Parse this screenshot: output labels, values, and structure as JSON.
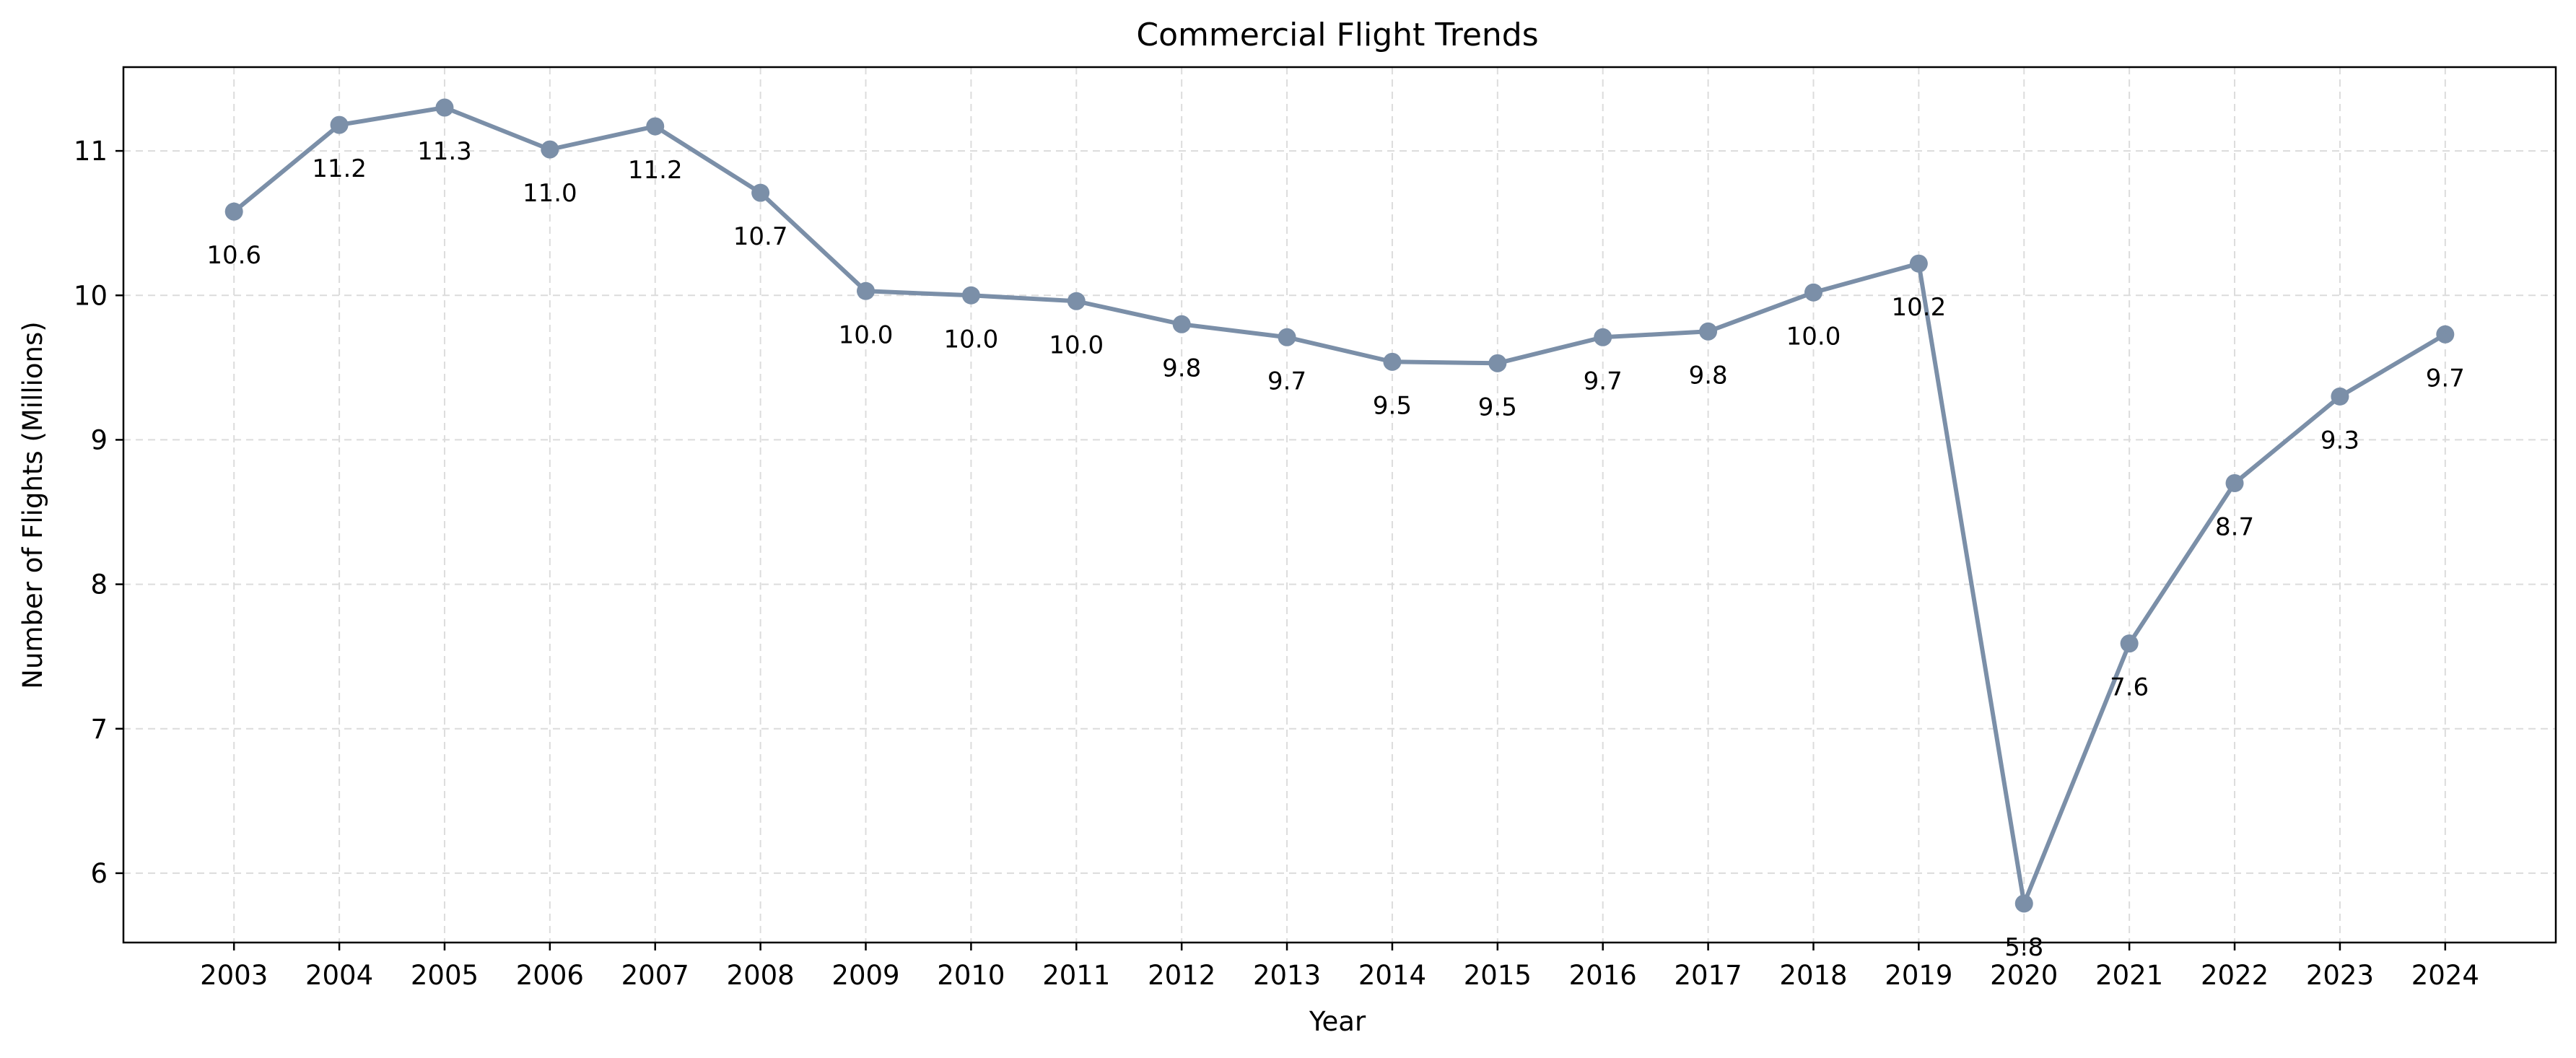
{
  "chart_data": {
    "type": "line",
    "title": "Commercial Flight Trends",
    "xlabel": "Year",
    "ylabel": "Number of Flights (Millions)",
    "x": [
      2003,
      2004,
      2005,
      2006,
      2007,
      2008,
      2009,
      2010,
      2011,
      2012,
      2013,
      2014,
      2015,
      2016,
      2017,
      2018,
      2019,
      2020,
      2021,
      2022,
      2023,
      2024
    ],
    "values": [
      10.58,
      11.18,
      11.3,
      11.01,
      11.17,
      10.71,
      10.03,
      10.0,
      9.96,
      9.8,
      9.71,
      9.54,
      9.53,
      9.71,
      9.75,
      10.02,
      10.22,
      5.79,
      7.59,
      8.7,
      9.3,
      9.73
    ],
    "labels": [
      "10.6",
      "11.2",
      "11.3",
      "11.0",
      "11.2",
      "10.7",
      "10.0",
      "10.0",
      "10.0",
      "9.8",
      "9.7",
      "9.5",
      "9.5",
      "9.7",
      "9.8",
      "10.0",
      "10.2",
      "5.8",
      "7.6",
      "8.7",
      "9.3",
      "9.7"
    ],
    "yticks": [
      6,
      7,
      8,
      9,
      10,
      11
    ],
    "ylim": [
      5.52,
      11.58
    ],
    "xlim": [
      2001.95,
      2025.05
    ],
    "grid": true,
    "color": "#7b8fa8"
  }
}
